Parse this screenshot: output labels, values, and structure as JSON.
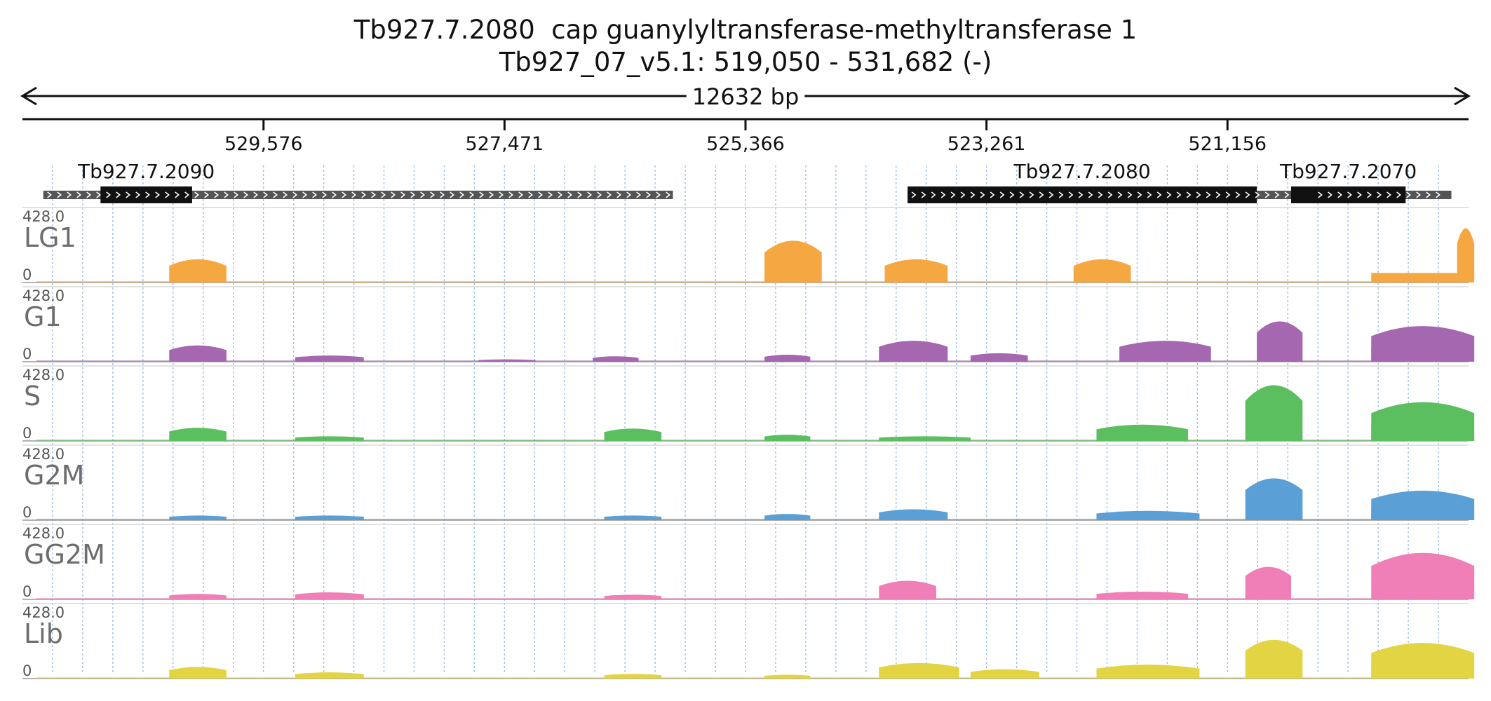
{
  "title": {
    "line1": "Tb927.7.2080  cap guanylyltransferase-methyltransferase 1",
    "line2": "Tb927_07_v5.1: 519,050 - 531,682 (-)"
  },
  "span_label": "12632 bp",
  "chart_data": {
    "type": "area",
    "region": {
      "chrom": "Tb927_07_v5.1",
      "start": 519050,
      "end": 531682,
      "strand": "-"
    },
    "x_ticks": [
      {
        "pos": 529576,
        "label": "529,576"
      },
      {
        "pos": 527471,
        "label": "527,471"
      },
      {
        "pos": 525366,
        "label": "525,366"
      },
      {
        "pos": 523261,
        "label": "523,261"
      },
      {
        "pos": 521156,
        "label": "521,156"
      }
    ],
    "genes": [
      {
        "name": "Tb927.7.2090",
        "utr": [
          526000,
          531500
        ],
        "cds": [
          530200,
          531000
        ]
      },
      {
        "name": "Tb927.7.2080",
        "utr": [
          519900,
          523950
        ],
        "cds": [
          520900,
          523950
        ]
      },
      {
        "name": "Tb927.7.2070",
        "utr": [
          519200,
          520400
        ],
        "cds": [
          519600,
          520600
        ]
      }
    ],
    "y_range": [
      0,
      428.0
    ],
    "y_max_label": "428.0",
    "y_min_label": "0",
    "tracks": [
      {
        "name": "LG1",
        "color": "#f5a742",
        "peaks": [
          [
            530400,
            529900,
            150
          ],
          [
            531000,
            530950,
            2
          ],
          [
            528800,
            528700,
            4
          ],
          [
            525200,
            524700,
            270
          ],
          [
            524150,
            523600,
            150
          ],
          [
            522500,
            522000,
            150
          ],
          [
            519700,
            519500,
            15
          ],
          [
            519150,
            519000,
            350
          ]
        ],
        "plateaus": [
          [
            519900,
            519150,
            60
          ]
        ]
      },
      {
        "name": "G1",
        "color": "#a567b0",
        "peaks": [
          [
            530400,
            529900,
            105
          ],
          [
            529300,
            528700,
            40
          ],
          [
            527700,
            527200,
            15
          ],
          [
            526700,
            526300,
            35
          ],
          [
            525200,
            524800,
            45
          ],
          [
            524200,
            523600,
            135
          ],
          [
            523400,
            522900,
            55
          ],
          [
            522100,
            521300,
            135
          ],
          [
            520900,
            520500,
            260
          ],
          [
            519900,
            519000,
            230
          ]
        ],
        "plateaus": [
          [
            519900,
            519150,
            85
          ]
        ]
      },
      {
        "name": "S",
        "color": "#5cbf5f",
        "peaks": [
          [
            530400,
            529900,
            85
          ],
          [
            529300,
            528700,
            30
          ],
          [
            526600,
            526100,
            80
          ],
          [
            525200,
            524800,
            40
          ],
          [
            524200,
            523400,
            30
          ],
          [
            522300,
            521500,
            105
          ],
          [
            521000,
            520500,
            360
          ],
          [
            519900,
            519000,
            250
          ]
        ],
        "plateaus": [
          [
            519900,
            519150,
            110
          ]
        ]
      },
      {
        "name": "G2M",
        "color": "#5a9fd6",
        "peaks": [
          [
            530400,
            529900,
            30
          ],
          [
            529300,
            528700,
            30
          ],
          [
            526600,
            526100,
            30
          ],
          [
            525200,
            524800,
            40
          ],
          [
            524200,
            523600,
            70
          ],
          [
            522300,
            521400,
            60
          ],
          [
            521000,
            520500,
            270
          ],
          [
            519900,
            519000,
            190
          ]
        ],
        "plateaus": [
          [
            519900,
            519150,
            70
          ]
        ]
      },
      {
        "name": "GG2M",
        "color": "#ef7fb6",
        "peaks": [
          [
            530400,
            529900,
            35
          ],
          [
            529300,
            528700,
            45
          ],
          [
            526600,
            526100,
            30
          ],
          [
            524200,
            523700,
            120
          ],
          [
            522300,
            521500,
            50
          ],
          [
            521000,
            520600,
            210
          ],
          [
            519900,
            519000,
            300
          ]
        ],
        "plateaus": [
          [
            519600,
            519200,
            180
          ]
        ]
      },
      {
        "name": "Lib",
        "color": "#e2d443",
        "peaks": [
          [
            530400,
            529900,
            75
          ],
          [
            529300,
            528700,
            40
          ],
          [
            526600,
            526100,
            30
          ],
          [
            525200,
            524800,
            25
          ],
          [
            524200,
            523500,
            100
          ],
          [
            523400,
            522800,
            60
          ],
          [
            522300,
            521400,
            90
          ],
          [
            521000,
            520500,
            250
          ],
          [
            519900,
            519000,
            230
          ]
        ],
        "plateaus": [
          [
            519900,
            519150,
            100
          ]
        ]
      }
    ]
  }
}
